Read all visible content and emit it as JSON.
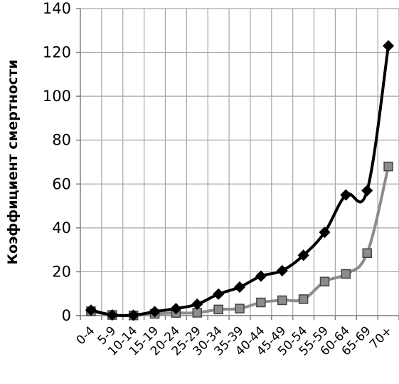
{
  "chart_data": {
    "type": "line",
    "title": "",
    "xlabel": "",
    "ylabel": "Коэффициент смертности",
    "ylim": [
      0,
      140
    ],
    "yticks": [
      0,
      20,
      40,
      60,
      80,
      100,
      120,
      140
    ],
    "grid": true,
    "legend": "none",
    "categories": [
      "0-4",
      "5-9",
      "10-14",
      "15-19",
      "20-24",
      "25-29",
      "30-34",
      "35-39",
      "40-44",
      "45-49",
      "50-54",
      "55-59",
      "60-64",
      "65-69",
      "70+"
    ],
    "series": [
      {
        "color": "#000000",
        "marker": "diamond",
        "values": [
          2.5,
          0.3,
          0.2,
          1.8,
          3.2,
          5.2,
          9.8,
          13.0,
          18.0,
          20.5,
          27.5,
          38.0,
          55.0,
          57.0,
          123.0
        ]
      },
      {
        "color": "#8c8c8c",
        "marker": "square",
        "values": [
          2.0,
          0.3,
          0.1,
          0.8,
          1.2,
          1.3,
          2.8,
          3.2,
          6.0,
          7.0,
          7.5,
          15.5,
          19.0,
          28.5,
          68.0
        ]
      }
    ]
  }
}
